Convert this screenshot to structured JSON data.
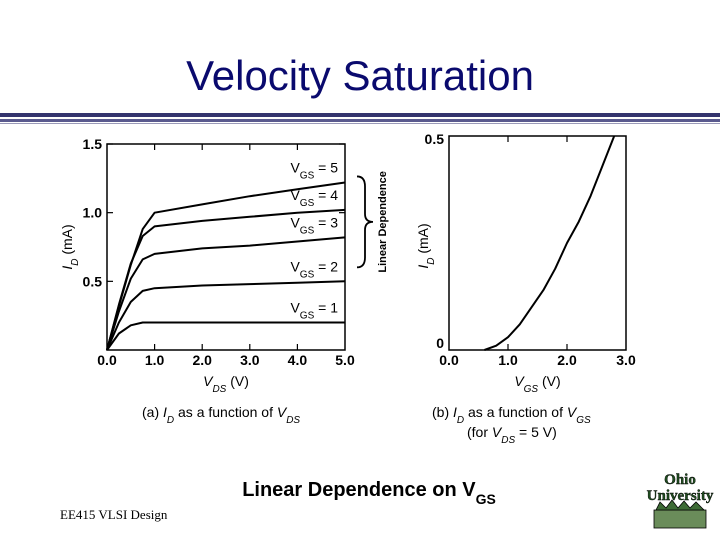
{
  "slide": {
    "title": "Velocity Saturation",
    "footer": "EE415 VLSI Design",
    "heading": {
      "main": "Linear Dependence on V",
      "sub": "GS"
    },
    "logo_text": [
      "Ohio",
      "University"
    ]
  },
  "chart_data": [
    {
      "type": "line",
      "xlabel": {
        "main": "V",
        "sub": "DS",
        "unit": " (V)"
      },
      "ylabel": {
        "main": "I",
        "sub": "D",
        "unit": " (mA)"
      },
      "xlim": [
        0,
        5.0
      ],
      "ylim": [
        0,
        1.5
      ],
      "xticks": [
        "0.0",
        "1.0",
        "2.0",
        "3.0",
        "4.0",
        "5.0"
      ],
      "yticks": [
        "0.5",
        "1.0",
        "1.5"
      ],
      "series": [
        {
          "name": "VGS = 1",
          "label": {
            "main": "V",
            "sub": "GS",
            "rest": " = 1"
          },
          "x": [
            0,
            0.25,
            0.5,
            0.75,
            1.0,
            2.0,
            3.0,
            4.0,
            5.0
          ],
          "y": [
            0,
            0.12,
            0.18,
            0.2,
            0.2,
            0.2,
            0.2,
            0.2,
            0.2
          ]
        },
        {
          "name": "VGS = 2",
          "label": {
            "main": "V",
            "sub": "GS",
            "rest": " = 2"
          },
          "x": [
            0,
            0.25,
            0.5,
            0.75,
            1.0,
            2.0,
            3.0,
            4.0,
            5.0
          ],
          "y": [
            0,
            0.2,
            0.35,
            0.43,
            0.45,
            0.47,
            0.48,
            0.49,
            0.5
          ]
        },
        {
          "name": "VGS = 3",
          "label": {
            "main": "V",
            "sub": "GS",
            "rest": " = 3"
          },
          "x": [
            0,
            0.25,
            0.5,
            0.75,
            1.0,
            2.0,
            3.0,
            4.0,
            5.0
          ],
          "y": [
            0,
            0.28,
            0.52,
            0.66,
            0.7,
            0.74,
            0.76,
            0.79,
            0.82
          ]
        },
        {
          "name": "VGS = 4",
          "label": {
            "main": "V",
            "sub": "GS",
            "rest": " = 4"
          },
          "x": [
            0,
            0.25,
            0.5,
            0.75,
            1.0,
            2.0,
            3.0,
            4.0,
            5.0
          ],
          "y": [
            0,
            0.33,
            0.63,
            0.83,
            0.9,
            0.94,
            0.97,
            1.0,
            1.02
          ]
        },
        {
          "name": "VGS = 5",
          "label": {
            "main": "V",
            "sub": "GS",
            "rest": " = 5"
          },
          "x": [
            0,
            0.25,
            0.5,
            0.75,
            1.0,
            2.0,
            3.0,
            4.0,
            5.0
          ],
          "y": [
            0,
            0.32,
            0.62,
            0.88,
            1.0,
            1.06,
            1.12,
            1.17,
            1.22
          ]
        }
      ],
      "bracket_label": "Linear Dependence",
      "caption": {
        "prefix": "(a) ",
        "main": "I",
        "sub": "D",
        "mid": " as a function of ",
        "main2": "V",
        "sub2": "DS"
      }
    },
    {
      "type": "line",
      "xlabel": {
        "main": "V",
        "sub": "GS",
        "unit": " (V)"
      },
      "ylabel": {
        "main": "I",
        "sub": "D",
        "unit": " (mA)"
      },
      "xlim": [
        0,
        3.0
      ],
      "ylim": [
        0,
        0.5
      ],
      "xticks": [
        "0.0",
        "1.0",
        "2.0",
        "3.0"
      ],
      "yticks": [
        "0",
        "0.5"
      ],
      "series": [
        {
          "x": [
            0.6,
            0.8,
            1.0,
            1.2,
            1.4,
            1.6,
            1.8,
            2.0,
            2.2,
            2.4,
            2.6,
            2.8
          ],
          "y": [
            0,
            0.01,
            0.03,
            0.06,
            0.1,
            0.14,
            0.19,
            0.25,
            0.3,
            0.36,
            0.43,
            0.5
          ]
        }
      ],
      "caption": {
        "prefix": "(b) ",
        "main": "I",
        "sub": "D",
        "mid": " as a function of ",
        "main2": "V",
        "sub2": "GS",
        "line2_pre": "(for ",
        "line2_main": "V",
        "line2_sub": "DS",
        "line2_post": " = 5 V)"
      }
    }
  ]
}
